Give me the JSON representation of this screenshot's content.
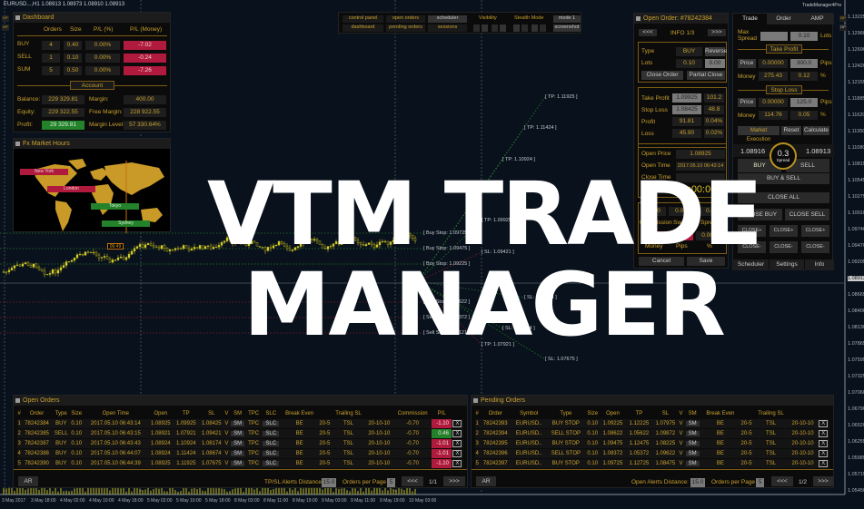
{
  "chart": {
    "symbol_header": "EURUSD...,H1  1.08913 1.08973 1.08910 1.08913",
    "current_price": "1.08913",
    "price_axis": [
      "1.13225",
      "1.12960",
      "1.12690",
      "1.12420",
      "1.12155",
      "1.11885",
      "1.11620",
      "1.11350",
      "1.11080",
      "1.10815",
      "1.10545",
      "1.10275",
      "1.10010",
      "1.09740",
      "1.09470",
      "1.09205",
      "1.08913",
      "1.08665",
      "1.08400",
      "1.08130",
      "1.07865",
      "1.07595",
      "1.07325",
      "1.07060",
      "1.06790",
      "1.06520",
      "1.06255",
      "1.05985",
      "1.05715",
      "1.05450"
    ],
    "time_axis": [
      "3 May 2017",
      "3 May 18:00",
      "4 May 02:00",
      "4 May 10:00",
      "4 May 18:00",
      "5 May 02:00",
      "5 May 10:00",
      "5 May 18:00",
      "8 May 03:00",
      "8 May 11:00",
      "8 May 19:00",
      "9 May 03:00",
      "9 May 11:00",
      "9 May 19:00",
      "10 May 03:00"
    ],
    "labels": [
      "[ TP: 1.11925 ]",
      "[ TP: 1.11424 ]",
      "[ TP: 1.10924 ]",
      "[ TP: 1.09925 ]",
      "[ Buy Stop: 1.09725 ]",
      "[ Buy Stop: 1.09475 ]",
      "[ SL: 1.09421 ]",
      "[ Buy Stop: 1.09225 ]",
      "[ SL: 1.08674 ]",
      "[ Sell Stop: 1.08622 ]",
      "[ Sell Stop: 1.08372 ]",
      "[ SL: 1.08174 ]",
      "[ Sell Stop: 1.08121 ]",
      "[ TP: 1.07921 ]",
      "[ SL: 1.07675 ]"
    ],
    "dp_label": "DP"
  },
  "overlay": {
    "line1": "VTM TRADE",
    "line2": "MANAGER"
  },
  "toolbar": {
    "control_panel": "control panel",
    "open_orders": "open orders",
    "scheduler": "scheduler",
    "dashboard": "dashboard",
    "pending_orders": "pending orders",
    "sessions": "sessions",
    "visibility": "Visibility",
    "stealth_mode": "Stealth Mode",
    "mode": "mode 1",
    "screenshot": "screenshot"
  },
  "dashboard": {
    "title": "Dashboard",
    "headers": [
      "Orders",
      "Size",
      "P/L (%)",
      "P/L (Money)"
    ],
    "rows": [
      {
        "label": "BUY",
        "orders": "4",
        "size": "0.40",
        "pl_pct": "0.00%",
        "pl_money": "-7.02"
      },
      {
        "label": "SELL",
        "orders": "1",
        "size": "0.10",
        "pl_pct": "0.00%",
        "pl_money": "-0.24"
      },
      {
        "label": "SUM",
        "orders": "5",
        "size": "0.50",
        "pl_pct": "0.00%",
        "pl_money": "-7.26"
      }
    ],
    "account_label": "Account",
    "balance_label": "Balance:",
    "balance": "229 329.81",
    "equity_label": "Equity:",
    "equity": "229 322.55",
    "profit_label": "Profit:",
    "profit": "29 329.81",
    "margin_label": "Margin:",
    "margin": "400.00",
    "free_margin_label": "Free Margin:",
    "free_margin": "228 922.55",
    "margin_level_label": "Margin Level:",
    "margin_level": "57 330.64%"
  },
  "market_hours": {
    "title": "Fx Market Hours",
    "sessions": [
      "New York",
      "London",
      "Tokyo",
      "Sydney"
    ],
    "time": "06:49"
  },
  "open_order": {
    "title": "Open Order: #78242384",
    "prev": "<<<",
    "info": "INFO 1/3",
    "next": ">>>",
    "type_label": "Type",
    "type": "BUY",
    "reverse": "Reverse",
    "lots_label": "Lots",
    "lots": "0.10",
    "lots_input": "0.00",
    "close_order": "Close Order",
    "partial_close": "Partial Close",
    "tp_label": "Take Profit",
    "tp": "1.09925",
    "tp_pips": "101.2",
    "sl_label": "Stop Loss",
    "sl": "1.08425",
    "sl_pips": "48.8",
    "profit_label": "Profit",
    "profit": "91.81",
    "profit_pct": "0.04%",
    "loss_label": "Loss",
    "loss": "45.90",
    "loss_pct": "0.02%",
    "open_price_label": "Open Price",
    "open_price": "1.08925",
    "open_time_label": "Open Time",
    "open_time": "2017.05.10 06:43:14",
    "close_time_label": "Close Time",
    "close_time": "",
    "timer": "0000 00:00:00",
    "commission": "-0.70",
    "swap": "0.00",
    "spread": "0.4",
    "commission_label": "Commission",
    "swap_label": "Swap",
    "spread_label": "Spread",
    "money": "-0.10",
    "pips": "-0.9",
    "pct": "0.00%",
    "money_label": "Money",
    "pips_label": "Pips",
    "pct_label": "%",
    "cancel": "Cancel",
    "save": "Save"
  },
  "trade_panel": {
    "app_title": "TradeManager4Pro",
    "tabs": [
      "Trade",
      "Order",
      "AMP"
    ],
    "max_spread_label": "Max Spread",
    "max_spread": "",
    "lots": "0.10",
    "lots_label": "Lots",
    "take_profit": "Take Profit",
    "stop_loss": "Stop Loss",
    "price_btn": "Price",
    "pips_label": "Pips",
    "money_label": "Money",
    "pct_label": "%",
    "tp_price": "0.00000",
    "tp_pips": "300.0",
    "tp_money": "275.43",
    "tp_pct": "0.12",
    "sl_price": "0.00000",
    "sl_pips": "125.0",
    "sl_money": "114.76",
    "sl_pct": "0.05",
    "market_execution": "Market Execution",
    "reset": "Reset",
    "calculate": "Calculate",
    "bid": "1.08916",
    "ask": "1.08913",
    "spread": "0.3",
    "spread_label": "Spread",
    "buy": "BUY",
    "sell": "SELL",
    "buy_sell": "BUY & SELL",
    "close_all": "CLOSE ALL",
    "close_buy": "CLOSE BUY",
    "close_sell": "CLOSE SELL",
    "close_plus": "CLOSE+",
    "close_minus": "CLOSE-",
    "bottom_tabs": [
      "Scheduler",
      "Settings",
      "Info"
    ]
  },
  "open_orders": {
    "title": "Open Orders",
    "headers": [
      "#",
      "Order",
      "Type",
      "Size",
      "Open Time",
      "Open",
      "TP",
      "SL",
      "V",
      "SM",
      "TPC",
      "SLC",
      "Break Even",
      "",
      "Trailing SL",
      "",
      "Commission",
      "P/L",
      ""
    ],
    "rows": [
      [
        "1",
        "78242384",
        "BUY",
        "0.10",
        "2017.05.10 06:43:14",
        "1.08925",
        "1.09925",
        "1.08425",
        "V",
        "SM",
        "TPC",
        "SLC",
        "BE",
        "20-5",
        "TSL",
        "20-10-10",
        "-0.70",
        "-1.10",
        "X"
      ],
      [
        "2",
        "78242385",
        "SELL",
        "0.10",
        "2017.05.10 06:43:15",
        "1.08921",
        "1.07921",
        "1.09421",
        "V",
        "SM",
        "TPC",
        "SLC",
        "BE",
        "20-5",
        "TSL",
        "20-10-10",
        "-0.70",
        "0.46",
        "X"
      ],
      [
        "3",
        "78242387",
        "BUY",
        "0.10",
        "2017.05.10 06:43:43",
        "1.08924",
        "1.10924",
        "1.08174",
        "V",
        "SM",
        "TPC",
        "SLC",
        "BE",
        "20-5",
        "TSL",
        "20-10-10",
        "-0.70",
        "-1.01",
        "X"
      ],
      [
        "4",
        "78242388",
        "BUY",
        "0.10",
        "2017.05.10 06:44:07",
        "1.08924",
        "1.11424",
        "1.08674",
        "V",
        "SM",
        "TPC",
        "SLC",
        "BE",
        "20-5",
        "TSL",
        "20-10-10",
        "-0.70",
        "-1.01",
        "X"
      ],
      [
        "5",
        "78242390",
        "BUY",
        "0.10",
        "2017.05.10 06:44:39",
        "1.08925",
        "1.11925",
        "1.07675",
        "V",
        "SM",
        "TPC",
        "SLC",
        "BE",
        "20-5",
        "TSL",
        "20-10-10",
        "-0.70",
        "-1.10",
        "X"
      ]
    ],
    "ar": "AR",
    "alerts_label": "TP/SL Alerts Distance",
    "alerts": "15.0",
    "per_page_label": "Orders per Page",
    "per_page": "5",
    "prev": "<<<",
    "page": "1/1",
    "next": ">>>"
  },
  "pending_orders": {
    "title": "Pending Orders",
    "headers": [
      "#",
      "Order",
      "Symbol",
      "Type",
      "Size",
      "Open",
      "TP",
      "SL",
      "V",
      "SM",
      "Break Even",
      "",
      "Trailing SL",
      "",
      ""
    ],
    "rows": [
      [
        "1",
        "78242393",
        "EURUSD..",
        "BUY STOP",
        "0.10",
        "1.09225",
        "1.12225",
        "1.07975",
        "V",
        "SM",
        "BE",
        "20-5",
        "TSL",
        "20-10-10",
        "X"
      ],
      [
        "2",
        "78242394",
        "EURUSD..",
        "SELL STOP",
        "0.10",
        "1.08622",
        "1.05622",
        "1.09872",
        "V",
        "SM",
        "BE",
        "20-5",
        "TSL",
        "20-10-10",
        "X"
      ],
      [
        "3",
        "78242395",
        "EURUSD..",
        "BUY STOP",
        "0.10",
        "1.09475",
        "1.12475",
        "1.08225",
        "V",
        "SM",
        "BE",
        "20-5",
        "TSL",
        "20-10-10",
        "X"
      ],
      [
        "4",
        "78242396",
        "EURUSD..",
        "SELL STOP",
        "0.10",
        "1.08372",
        "1.05372",
        "1.09622",
        "V",
        "SM",
        "BE",
        "20-5",
        "TSL",
        "20-10-10",
        "X"
      ],
      [
        "5",
        "78242397",
        "EURUSD..",
        "BUY STOP",
        "0.10",
        "1.09725",
        "1.12725",
        "1.08475",
        "V",
        "SM",
        "BE",
        "20-5",
        "TSL",
        "20-10-10",
        "X"
      ]
    ],
    "ar": "AR",
    "alerts_label": "Open Alerts Distance:",
    "alerts": "15.0",
    "per_page_label": "Orders per Page",
    "per_page": "5",
    "prev": "<<<",
    "page": "1/2",
    "next": ">>>"
  }
}
